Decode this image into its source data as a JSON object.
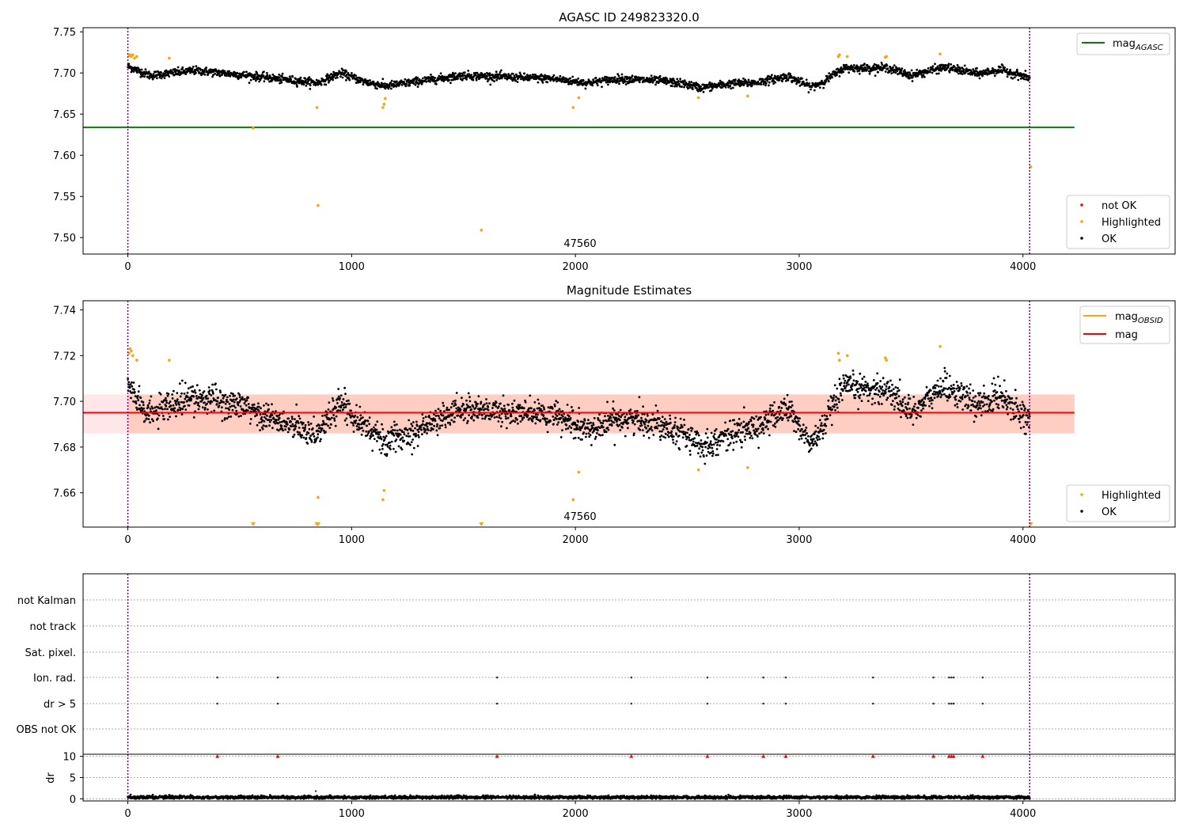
{
  "chart_data": [
    {
      "type": "scatter",
      "title": "AGASC ID 249823320.0",
      "xlim": [
        -200,
        4680
      ],
      "ylim": [
        7.48,
        7.755
      ],
      "x_ticks": [
        0,
        1000,
        2000,
        3000,
        4000
      ],
      "y_ticks": [
        7.5,
        7.55,
        7.6,
        7.65,
        7.7,
        7.75
      ],
      "vlines": [
        0,
        4030
      ],
      "annotation": {
        "text": "47560",
        "x": 2020,
        "y": 7.486
      },
      "hlines": [
        {
          "name": "mag_AGASC",
          "y": 7.634,
          "x_range": [
            -200,
            4230
          ],
          "color": "#008000"
        }
      ],
      "legend_top": {
        "position": "upper right",
        "entries": [
          {
            "label": "mag",
            "sub": "AGASC",
            "kind": "line",
            "color": "#008000"
          }
        ]
      },
      "legend_bottom": {
        "position": "lower right",
        "entries": [
          {
            "label": "not OK",
            "kind": "dot",
            "color": "#ff0000"
          },
          {
            "label": "Highlighted",
            "kind": "dot",
            "color": "#ffa500"
          },
          {
            "label": "OK",
            "kind": "dot",
            "color": "#000000"
          }
        ]
      },
      "ok_series": {
        "name": "OK",
        "color": "#000000",
        "x_range": [
          0,
          4030
        ],
        "n": 2600,
        "base": 7.6965,
        "trend_knots": {
          "x": [
            0,
            100,
            300,
            500,
            700,
            850,
            950,
            1050,
            1150,
            1300,
            1500,
            1700,
            1900,
            2050,
            2200,
            2400,
            2500,
            2560,
            2700,
            2800,
            2950,
            3050,
            3100,
            3200,
            3400,
            3500,
            3650,
            3800,
            3900,
            4030
          ],
          "y": [
            7.708,
            7.697,
            7.703,
            7.698,
            7.692,
            7.688,
            7.7,
            7.69,
            7.684,
            7.69,
            7.697,
            7.695,
            7.693,
            7.688,
            7.693,
            7.69,
            7.686,
            7.682,
            7.687,
            7.688,
            7.696,
            7.683,
            7.688,
            7.706,
            7.706,
            7.697,
            7.707,
            7.699,
            7.704,
            7.694
          ]
        },
        "noise": 0.0045
      },
      "highlighted": {
        "name": "Highlighted",
        "color": "#ffa500",
        "x": [
          5,
          10,
          15,
          22,
          30,
          40,
          185,
          560,
          850,
          845,
          1140,
          1145,
          1150,
          1580,
          1990,
          2015,
          2550,
          2770,
          3175,
          3180,
          3215,
          3385,
          3390,
          3630,
          4035
        ],
        "y": [
          7.721,
          7.722,
          7.72,
          7.722,
          7.718,
          7.72,
          7.718,
          7.633,
          7.539,
          7.658,
          7.658,
          7.662,
          7.669,
          7.509,
          7.658,
          7.67,
          7.67,
          7.672,
          7.72,
          7.722,
          7.72,
          7.719,
          7.72,
          7.723,
          7.586
        ]
      }
    },
    {
      "type": "scatter",
      "title": "Magnitude Estimates",
      "xlim": [
        -200,
        4680
      ],
      "ylim": [
        7.645,
        7.744
      ],
      "x_ticks": [
        0,
        1000,
        2000,
        3000,
        4000
      ],
      "y_ticks": [
        7.66,
        7.68,
        7.7,
        7.72,
        7.74
      ],
      "vlines": [
        0,
        4030
      ],
      "annotation": {
        "text": "47560",
        "x": 2020,
        "y": 7.647
      },
      "band": {
        "y_range": [
          7.686,
          7.703
        ],
        "x_range": [
          -200,
          4230
        ],
        "color": "#ffb6c1"
      },
      "band_inner": {
        "y_range": [
          7.686,
          7.703
        ],
        "x_range": [
          0,
          4230
        ],
        "color": "#ffa07a"
      },
      "hlines": [
        {
          "name": "mag",
          "y": 7.695,
          "x_range": [
            -200,
            4230
          ],
          "color": "#ff0000"
        }
      ],
      "legend_top": {
        "position": "upper right",
        "entries": [
          {
            "label": "mag",
            "sub": "OBSID",
            "kind": "line",
            "color": "#ffa500"
          },
          {
            "label": "mag",
            "sub": "",
            "kind": "line",
            "color": "#ff0000"
          }
        ]
      },
      "legend_bottom": {
        "position": "lower right",
        "entries": [
          {
            "label": "Highlighted",
            "kind": "dot",
            "color": "#ffa500"
          },
          {
            "label": "OK",
            "kind": "dot",
            "color": "#000000"
          }
        ]
      },
      "ok_series": {
        "name": "OK",
        "color": "#000000",
        "x_range": [
          0,
          4030
        ],
        "n": 2600,
        "base": 7.695,
        "trend_knots": {
          "x": [
            0,
            100,
            300,
            500,
            700,
            850,
            950,
            1050,
            1150,
            1300,
            1500,
            1700,
            1900,
            2050,
            2200,
            2400,
            2500,
            2560,
            2700,
            2800,
            2950,
            3050,
            3100,
            3200,
            3400,
            3500,
            3650,
            3800,
            3900,
            4030
          ],
          "y": [
            7.707,
            7.694,
            7.702,
            7.698,
            7.69,
            7.686,
            7.7,
            7.69,
            7.682,
            7.688,
            7.697,
            7.695,
            7.694,
            7.687,
            7.693,
            7.69,
            7.685,
            7.68,
            7.686,
            7.688,
            7.697,
            7.681,
            7.688,
            7.706,
            7.705,
            7.695,
            7.707,
            7.698,
            7.703,
            7.692
          ]
        },
        "noise": 0.0055
      },
      "highlighted": {
        "name": "Highlighted",
        "color": "#ffa500",
        "x": [
          5,
          10,
          15,
          22,
          40,
          185,
          850,
          1140,
          1145,
          1990,
          2015,
          2550,
          2770,
          3175,
          3180,
          3215,
          3385,
          3390,
          3630
        ],
        "y": [
          7.721,
          7.723,
          7.722,
          7.72,
          7.718,
          7.718,
          7.658,
          7.657,
          7.661,
          7.657,
          7.669,
          7.67,
          7.671,
          7.721,
          7.718,
          7.72,
          7.719,
          7.718,
          7.724
        ]
      },
      "clipped_markers": {
        "color": "#ffa500",
        "x": [
          560,
          845,
          850,
          1580,
          4035
        ]
      }
    },
    {
      "type": "scatter",
      "title": "",
      "xlim": [
        -200,
        4680
      ],
      "categories": [
        "not Kalman",
        "not track",
        "Sat. pixel.",
        "Ion. rad.",
        "dr > 5",
        "OBS not OK"
      ],
      "x_ticks": [
        0,
        1000,
        2000,
        3000,
        4000
      ],
      "vlines": [
        0,
        4030
      ],
      "flags": {
        "Ion. rad.": [
          400,
          670,
          1650,
          2250,
          2590,
          2840,
          2940,
          3330,
          3600,
          3670,
          3680,
          3690,
          3820
        ],
        "dr > 5": [
          400,
          670,
          1650,
          2250,
          2590,
          2840,
          2940,
          3330,
          3600,
          3670,
          3680,
          3690,
          3820
        ]
      },
      "dr_panel": {
        "ylabel": "dr",
        "ylim": [
          -0.5,
          10.5
        ],
        "y_ticks": [
          0,
          5,
          10
        ],
        "series": {
          "name": "dr",
          "color": "#000000",
          "x_range": [
            0,
            4030
          ],
          "n": 2600,
          "mean": 0.35,
          "noise": 0.18
        },
        "outlier": {
          "x": 840,
          "y": 1.8
        },
        "clipped_markers": {
          "color": "#ff0000",
          "y": 10,
          "x": [
            400,
            670,
            1650,
            2250,
            2590,
            2840,
            2940,
            3330,
            3600,
            3670,
            3680,
            3690,
            3820
          ]
        }
      }
    }
  ]
}
